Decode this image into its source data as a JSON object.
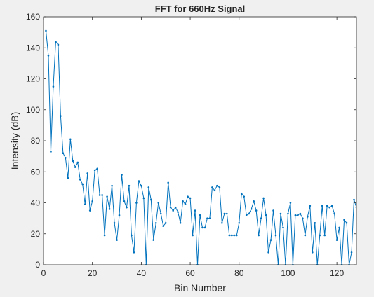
{
  "chart_data": {
    "type": "line",
    "title": "FFT for 660Hz Signal",
    "xlabel": "Bin Number",
    "ylabel": "Intensity (dB)",
    "xlim": [
      0,
      128
    ],
    "ylim": [
      0,
      160
    ],
    "xticks": [
      0,
      20,
      40,
      60,
      80,
      100,
      120
    ],
    "yticks": [
      0,
      20,
      40,
      60,
      80,
      100,
      120,
      140,
      160
    ],
    "grid": false,
    "legend": "none",
    "colors": {
      "line": "#0072bd",
      "axes": "#262626",
      "background": "#ffffff",
      "figure": "#f0f0f0"
    },
    "series": [
      {
        "x": [
          1,
          2,
          3,
          4,
          5,
          6,
          7,
          8,
          9,
          10,
          11,
          12,
          13,
          14,
          15,
          16,
          17,
          18,
          19,
          20,
          21,
          22,
          23,
          24,
          25,
          26,
          27,
          28,
          29,
          30,
          31,
          32,
          33,
          34,
          35,
          36,
          37,
          38,
          39,
          40,
          41,
          42,
          43,
          44,
          45,
          46,
          47,
          48,
          49,
          50,
          51,
          52,
          53,
          54,
          55,
          56,
          57,
          58,
          59,
          60,
          61,
          62,
          63,
          64,
          65,
          66,
          67,
          68,
          69,
          70,
          71,
          72,
          73,
          74,
          75,
          76,
          77,
          78,
          79,
          80,
          81,
          82,
          83,
          84,
          85,
          86,
          87,
          88,
          89,
          90,
          91,
          92,
          93,
          94,
          95,
          96,
          97,
          98,
          99,
          100,
          101,
          102,
          103,
          104,
          105,
          106,
          107,
          108,
          109,
          110,
          111,
          112,
          113,
          114,
          115,
          116,
          117,
          118,
          119,
          120,
          121,
          122,
          123,
          124,
          125,
          126,
          127,
          128
        ],
        "values": [
          151,
          135,
          73,
          115,
          144,
          142,
          96,
          72,
          69,
          56,
          81,
          67,
          63,
          66,
          55,
          52,
          39,
          59,
          35,
          41,
          61,
          62,
          45,
          45,
          19,
          44,
          36,
          51,
          27,
          16,
          32,
          58,
          41,
          37,
          51,
          19,
          8,
          40,
          54,
          51,
          43,
          0,
          50,
          42,
          16,
          27,
          40,
          33,
          25,
          27,
          53,
          37,
          35,
          37,
          34,
          27,
          41,
          39,
          44,
          43,
          19,
          35,
          0,
          32,
          24,
          24,
          30,
          30,
          50,
          48,
          51,
          50,
          27,
          33,
          33,
          19,
          19,
          19,
          19,
          27,
          46,
          44,
          32,
          33,
          36,
          41,
          35,
          19,
          30,
          43,
          32,
          8,
          16,
          35,
          19,
          0,
          33,
          24,
          0,
          33,
          40,
          0,
          32,
          32,
          33,
          30,
          19,
          31,
          38,
          8,
          27,
          0,
          19,
          38,
          19,
          38,
          37,
          38,
          33,
          16,
          24,
          0,
          29,
          27,
          0,
          8,
          42,
          37
        ]
      }
    ]
  }
}
